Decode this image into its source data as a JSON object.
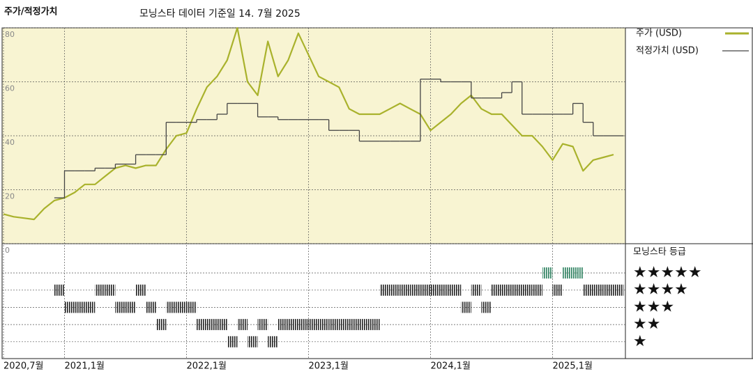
{
  "chart_data": {
    "type": "line",
    "title": "주가/적정가치",
    "subtitle": "모닝스타 데이터 기준일 14. 7월 2025",
    "x": [
      "2020-07",
      "2020-08",
      "2020-09",
      "2020-10",
      "2020-11",
      "2020-12",
      "2021-01",
      "2021-02",
      "2021-03",
      "2021-04",
      "2021-05",
      "2021-06",
      "2021-07",
      "2021-08",
      "2021-09",
      "2021-10",
      "2021-11",
      "2021-12",
      "2022-01",
      "2022-02",
      "2022-03",
      "2022-04",
      "2022-05",
      "2022-06",
      "2022-07",
      "2022-08",
      "2022-09",
      "2022-10",
      "2022-11",
      "2022-12",
      "2023-01",
      "2023-02",
      "2023-03",
      "2023-04",
      "2023-05",
      "2023-06",
      "2023-07",
      "2023-08",
      "2023-09",
      "2023-10",
      "2023-11",
      "2023-12",
      "2024-01",
      "2024-02",
      "2024-03",
      "2024-04",
      "2024-05",
      "2024-06",
      "2024-07",
      "2024-08",
      "2024-09",
      "2024-10",
      "2024-11",
      "2024-12",
      "2025-01",
      "2025-02",
      "2025-03",
      "2025-04",
      "2025-05",
      "2025-06",
      "2025-07"
    ],
    "series": [
      {
        "name": "주가 (USD)",
        "color": "#a9b22c",
        "values": [
          11,
          10,
          9.5,
          9,
          13,
          16,
          17,
          19,
          22,
          22,
          25,
          28,
          29,
          28,
          29,
          29,
          35,
          40,
          41,
          50,
          58,
          62,
          68,
          80,
          60,
          55,
          75,
          62,
          68,
          78,
          70,
          62,
          60,
          58,
          50,
          48,
          48,
          48,
          50,
          52,
          50,
          48,
          42,
          45,
          48,
          52,
          55,
          50,
          48,
          48,
          44,
          40,
          40,
          36,
          31,
          37,
          36,
          27,
          31,
          32,
          33
        ]
      },
      {
        "name": "적정가치 (USD)",
        "color": "#444444",
        "step": true,
        "values": [
          null,
          null,
          null,
          null,
          null,
          17,
          27,
          27,
          27,
          28,
          28,
          29.5,
          29.5,
          33,
          33,
          33,
          45,
          45,
          45,
          46,
          46,
          48,
          52,
          52,
          52,
          47,
          47,
          46,
          46,
          46,
          46,
          46,
          42,
          42,
          42,
          38,
          38,
          38,
          38,
          38,
          38,
          61,
          61,
          60,
          60,
          60,
          54,
          54,
          54,
          56,
          60,
          48,
          48,
          48,
          48,
          48,
          52,
          45,
          40,
          40,
          40
        ]
      }
    ],
    "ylim": [
      0,
      80
    ],
    "yticks": [
      0,
      20,
      40,
      60,
      80
    ],
    "xticks": [
      {
        "value": "2020-07",
        "label": "2020,7월"
      },
      {
        "value": "2021-01",
        "label": "2021,1월"
      },
      {
        "value": "2022-01",
        "label": "2022,1월"
      },
      {
        "value": "2023-01",
        "label": "2023,1월"
      },
      {
        "value": "2024-01",
        "label": "2024,1월"
      },
      {
        "value": "2025-01",
        "label": "2025,1월"
      }
    ],
    "grid": true,
    "rating_title": "모닝스타 등급",
    "rating_scale": [
      {
        "value": 5,
        "label": "★★★★★"
      },
      {
        "value": 4,
        "label": "★★★★"
      },
      {
        "value": 3,
        "label": "★★★"
      },
      {
        "value": 2,
        "label": "★★"
      },
      {
        "value": 1,
        "label": "★"
      }
    ],
    "rating_colors": {
      "top": "#3d8a6c",
      "other": "#222222"
    },
    "ratings": [
      null,
      null,
      null,
      null,
      null,
      4,
      3,
      3,
      3,
      4,
      4,
      3,
      3,
      4,
      3,
      2,
      3,
      3,
      3,
      2,
      2,
      2,
      1,
      2,
      1,
      2,
      1,
      2,
      2,
      2,
      2,
      2,
      2,
      2,
      2,
      2,
      2,
      4,
      4,
      4,
      4,
      4,
      4,
      4,
      4,
      3,
      4,
      3,
      4,
      4,
      4,
      4,
      4,
      5,
      4,
      5,
      5,
      4,
      4,
      4,
      4
    ]
  }
}
